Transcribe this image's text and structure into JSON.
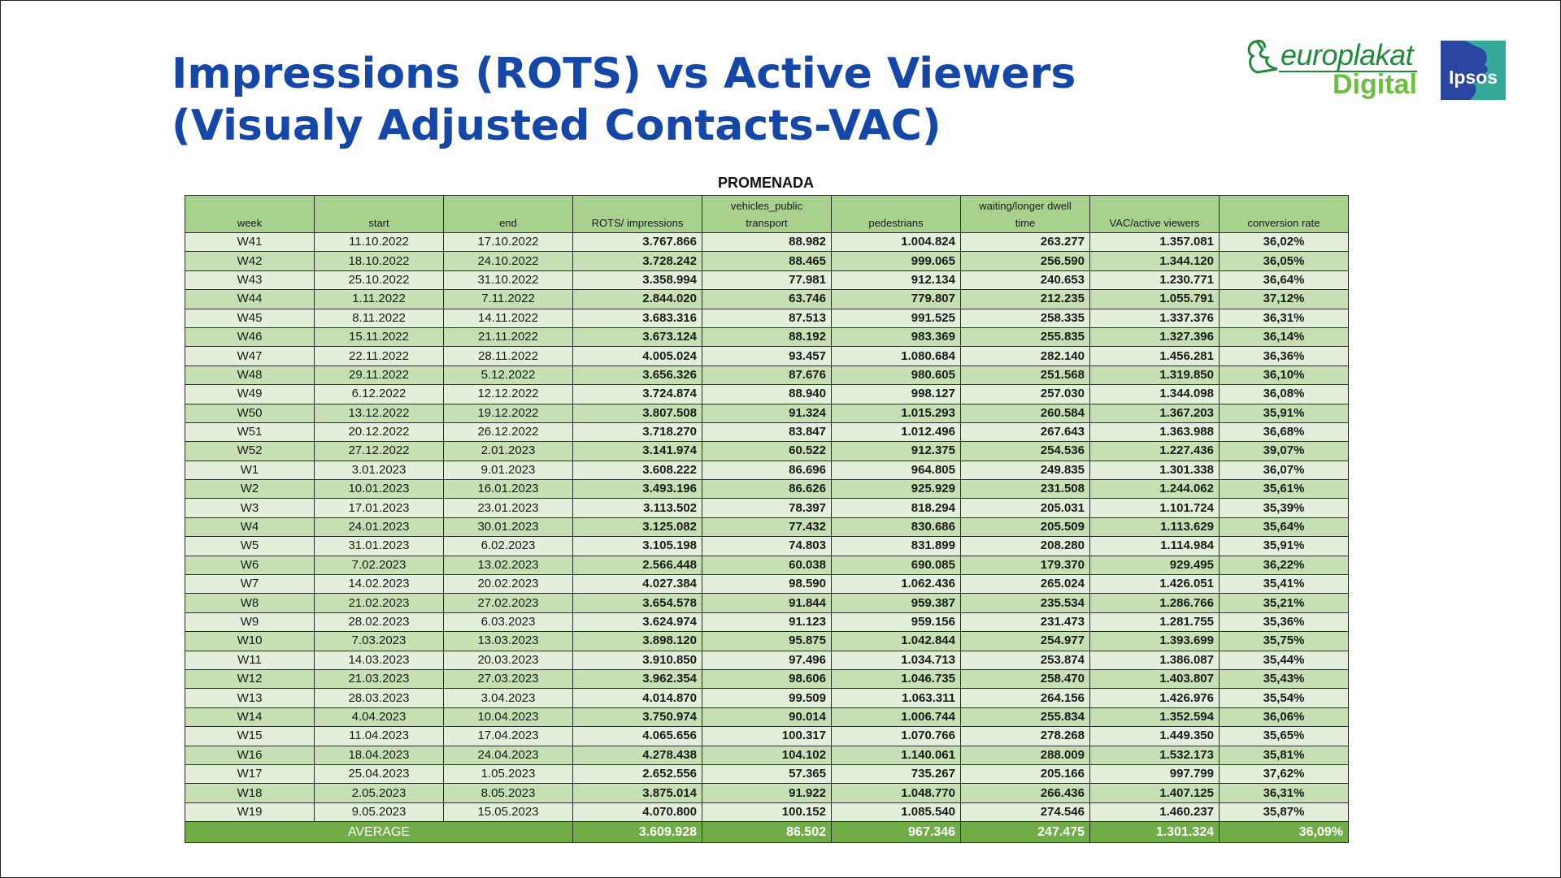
{
  "title_lines": [
    "Impressions (ROTS) vs Active Viewers",
    "(Visualy Adjusted Contacts-VAC)"
  ],
  "logos": {
    "europlakat_name": "europlakat",
    "europlakat_sub": "Digital",
    "ipsos": "Ipsos",
    "colors": {
      "europlakat_green": "#1f8a3a",
      "digital_green": "#6cbf3e",
      "ipsos_blue": "#2a46a0"
    }
  },
  "table": {
    "caption": "PROMENADA",
    "columns": [
      {
        "label": "week"
      },
      {
        "label": "start"
      },
      {
        "label": "end"
      },
      {
        "label": "ROTS/ impressions"
      },
      {
        "label_line1": "vehicles_public",
        "label_line2": "transport"
      },
      {
        "label": "pedestrians"
      },
      {
        "label_line1": "waiting/longer dwell",
        "label_line2": "time"
      },
      {
        "label": "VAC/active viewers"
      },
      {
        "label": "conversion rate"
      }
    ],
    "rows": [
      [
        "W41",
        "11.10.2022",
        "17.10.2022",
        "3.767.866",
        "88.982",
        "1.004.824",
        "263.277",
        "1.357.081",
        "36,02%"
      ],
      [
        "W42",
        "18.10.2022",
        "24.10.2022",
        "3.728.242",
        "88.465",
        "999.065",
        "256.590",
        "1.344.120",
        "36,05%"
      ],
      [
        "W43",
        "25.10.2022",
        "31.10.2022",
        "3.358.994",
        "77.981",
        "912.134",
        "240.653",
        "1.230.771",
        "36,64%"
      ],
      [
        "W44",
        "1.11.2022",
        "7.11.2022",
        "2.844.020",
        "63.746",
        "779.807",
        "212.235",
        "1.055.791",
        "37,12%"
      ],
      [
        "W45",
        "8.11.2022",
        "14.11.2022",
        "3.683.316",
        "87.513",
        "991.525",
        "258.335",
        "1.337.376",
        "36,31%"
      ],
      [
        "W46",
        "15.11.2022",
        "21.11.2022",
        "3.673.124",
        "88.192",
        "983.369",
        "255.835",
        "1.327.396",
        "36,14%"
      ],
      [
        "W47",
        "22.11.2022",
        "28.11.2022",
        "4.005.024",
        "93.457",
        "1.080.684",
        "282.140",
        "1.456.281",
        "36,36%"
      ],
      [
        "W48",
        "29.11.2022",
        "5.12.2022",
        "3.656.326",
        "87.676",
        "980.605",
        "251.568",
        "1.319.850",
        "36,10%"
      ],
      [
        "W49",
        "6.12.2022",
        "12.12.2022",
        "3.724.874",
        "88.940",
        "998.127",
        "257.030",
        "1.344.098",
        "36,08%"
      ],
      [
        "W50",
        "13.12.2022",
        "19.12.2022",
        "3.807.508",
        "91.324",
        "1.015.293",
        "260.584",
        "1.367.203",
        "35,91%"
      ],
      [
        "W51",
        "20.12.2022",
        "26.12.2022",
        "3.718.270",
        "83.847",
        "1.012.496",
        "267.643",
        "1.363.988",
        "36,68%"
      ],
      [
        "W52",
        "27.12.2022",
        "2.01.2023",
        "3.141.974",
        "60.522",
        "912.375",
        "254.536",
        "1.227.436",
        "39,07%"
      ],
      [
        "W1",
        "3.01.2023",
        "9.01.2023",
        "3.608.222",
        "86.696",
        "964.805",
        "249.835",
        "1.301.338",
        "36,07%"
      ],
      [
        "W2",
        "10.01.2023",
        "16.01.2023",
        "3.493.196",
        "86.626",
        "925.929",
        "231.508",
        "1.244.062",
        "35,61%"
      ],
      [
        "W3",
        "17.01.2023",
        "23.01.2023",
        "3.113.502",
        "78.397",
        "818.294",
        "205.031",
        "1.101.724",
        "35,39%"
      ],
      [
        "W4",
        "24.01.2023",
        "30.01.2023",
        "3.125.082",
        "77.432",
        "830.686",
        "205.509",
        "1.113.629",
        "35,64%"
      ],
      [
        "W5",
        "31.01.2023",
        "6.02.2023",
        "3.105.198",
        "74.803",
        "831.899",
        "208.280",
        "1.114.984",
        "35,91%"
      ],
      [
        "W6",
        "7.02.2023",
        "13.02.2023",
        "2.566.448",
        "60.038",
        "690.085",
        "179.370",
        "929.495",
        "36,22%"
      ],
      [
        "W7",
        "14.02.2023",
        "20.02.2023",
        "4.027.384",
        "98.590",
        "1.062.436",
        "265.024",
        "1.426.051",
        "35,41%"
      ],
      [
        "W8",
        "21.02.2023",
        "27.02.2023",
        "3.654.578",
        "91.844",
        "959.387",
        "235.534",
        "1.286.766",
        "35,21%"
      ],
      [
        "W9",
        "28.02.2023",
        "6.03.2023",
        "3.624.974",
        "91.123",
        "959.156",
        "231.473",
        "1.281.755",
        "35,36%"
      ],
      [
        "W10",
        "7.03.2023",
        "13.03.2023",
        "3.898.120",
        "95.875",
        "1.042.844",
        "254.977",
        "1.393.699",
        "35,75%"
      ],
      [
        "W11",
        "14.03.2023",
        "20.03.2023",
        "3.910.850",
        "97.496",
        "1.034.713",
        "253.874",
        "1.386.087",
        "35,44%"
      ],
      [
        "W12",
        "21.03.2023",
        "27.03.2023",
        "3.962.354",
        "98.606",
        "1.046.735",
        "258.470",
        "1.403.807",
        "35,43%"
      ],
      [
        "W13",
        "28.03.2023",
        "3.04.2023",
        "4.014.870",
        "99.509",
        "1.063.311",
        "264.156",
        "1.426.976",
        "35,54%"
      ],
      [
        "W14",
        "4.04.2023",
        "10.04.2023",
        "3.750.974",
        "90.014",
        "1.006.744",
        "255.834",
        "1.352.594",
        "36,06%"
      ],
      [
        "W15",
        "11.04.2023",
        "17.04.2023",
        "4.065.656",
        "100.317",
        "1.070.766",
        "278.268",
        "1.449.350",
        "35,65%"
      ],
      [
        "W16",
        "18.04.2023",
        "24.04.2023",
        "4.278.438",
        "104.102",
        "1.140.061",
        "288.009",
        "1.532.173",
        "35,81%"
      ],
      [
        "W17",
        "25.04.2023",
        "1.05.2023",
        "2.652.556",
        "57.365",
        "735.267",
        "205.166",
        "997.799",
        "37,62%"
      ],
      [
        "W18",
        "2.05.2023",
        "8.05.2023",
        "3.875.014",
        "91.922",
        "1.048.770",
        "266.436",
        "1.407.125",
        "36,31%"
      ],
      [
        "W19",
        "9.05.2023",
        "15.05.2023",
        "4.070.800",
        "100.152",
        "1.085.540",
        "274.546",
        "1.460.237",
        "35,87%"
      ]
    ],
    "average": {
      "label": "AVERAGE",
      "values": [
        "3.609.928",
        "86.502",
        "967.346",
        "247.475",
        "1.301.324",
        "36,09%"
      ]
    },
    "colors": {
      "header": "#a9d18e",
      "row_light": "#e2efda",
      "row_dark": "#c6e0b4",
      "footer": "#70ad47"
    }
  }
}
